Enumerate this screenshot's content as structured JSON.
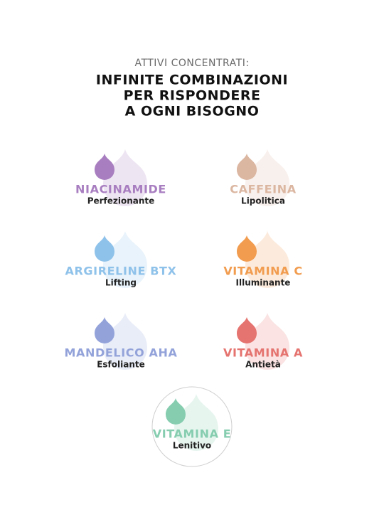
{
  "header": {
    "subtitle": "ATTIVI CONCENTRATI:",
    "title_lines": [
      "INFINITE COMBINAZIONI",
      "PER RISPONDERE",
      "A OGNI BISOGNO"
    ]
  },
  "items": [
    {
      "name": "NIACINAMIDE",
      "description": "Perfezionante",
      "color": "#a87ec0"
    },
    {
      "name": "CAFFEINA",
      "description": "Lipolitica",
      "color": "#dbb6a1"
    },
    {
      "name": "ARGIRELINE BTX",
      "description": "Lifting",
      "color": "#8fc2ea"
    },
    {
      "name": "VITAMINA C",
      "description": "Illuminante",
      "color": "#f19c4f"
    },
    {
      "name": "MANDELICO AHA",
      "description": "Esfoliante",
      "color": "#93a3da"
    },
    {
      "name": "VITAMINA A",
      "description": "Antietà",
      "color": "#e5736f"
    },
    {
      "name": "VITAMINA E",
      "description": "Lenitivo",
      "color": "#86cdb0"
    }
  ]
}
